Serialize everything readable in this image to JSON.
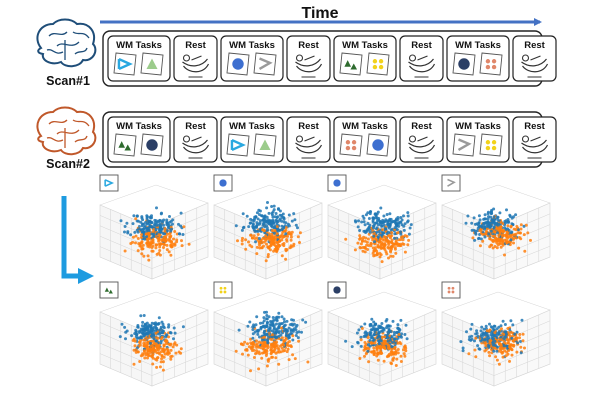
{
  "time_label": "Time",
  "scans": [
    {
      "label": "Scan#1",
      "brain_color": "#1f4e79",
      "blocks": [
        {
          "type": "task",
          "label": "WM Tasks",
          "cards": [
            "blue-lines",
            "green-triangle"
          ]
        },
        {
          "type": "rest",
          "label": "Rest"
        },
        {
          "type": "task",
          "label": "WM Tasks",
          "cards": [
            "blue-circle",
            "gray-lines"
          ]
        },
        {
          "type": "rest",
          "label": "Rest"
        },
        {
          "type": "task",
          "label": "WM Tasks",
          "cards": [
            "green-triangles",
            "yellow-dots"
          ]
        },
        {
          "type": "rest",
          "label": "Rest"
        },
        {
          "type": "task",
          "label": "WM Tasks",
          "cards": [
            "navy-circle",
            "salmon-dots"
          ]
        },
        {
          "type": "rest",
          "label": "Rest"
        }
      ]
    },
    {
      "label": "Scan#2",
      "brain_color": "#c0582a",
      "blocks": [
        {
          "type": "task",
          "label": "WM Tasks",
          "cards": [
            "green-triangles",
            "navy-circle"
          ]
        },
        {
          "type": "rest",
          "label": "Rest"
        },
        {
          "type": "task",
          "label": "WM Tasks",
          "cards": [
            "blue-lines",
            "green-triangle"
          ]
        },
        {
          "type": "rest",
          "label": "Rest"
        },
        {
          "type": "task",
          "label": "WM Tasks",
          "cards": [
            "salmon-dots",
            "blue-circle"
          ]
        },
        {
          "type": "rest",
          "label": "Rest"
        },
        {
          "type": "task",
          "label": "WM Tasks",
          "cards": [
            "gray-lines",
            "yellow-dots"
          ]
        },
        {
          "type": "rest",
          "label": "Rest"
        }
      ]
    }
  ],
  "scatter_panels": [
    {
      "stimulus": "blue-lines",
      "seed": 11,
      "blue_center": [
        0.0,
        0.3
      ],
      "orange_center": [
        0.1,
        -0.3
      ]
    },
    {
      "stimulus": "blue-circle",
      "seed": 23,
      "blue_center": [
        0.0,
        0.45
      ],
      "orange_center": [
        0.15,
        -0.35
      ]
    },
    {
      "stimulus": "blue-circle",
      "seed": 37,
      "blue_center": [
        0.05,
        0.4
      ],
      "orange_center": [
        0.0,
        -0.45
      ]
    },
    {
      "stimulus": "gray-lines",
      "seed": 41,
      "blue_center": [
        -0.1,
        0.35
      ],
      "orange_center": [
        0.2,
        -0.1
      ]
    },
    {
      "stimulus": "green-triangles",
      "seed": 53,
      "blue_center": [
        -0.1,
        0.35
      ],
      "orange_center": [
        0.1,
        -0.45
      ]
    },
    {
      "stimulus": "yellow-dots",
      "seed": 67,
      "blue_center": [
        0.2,
        0.45
      ],
      "orange_center": [
        0.0,
        -0.35
      ]
    },
    {
      "stimulus": "navy-circle",
      "seed": 79,
      "blue_center": [
        0.0,
        0.3
      ],
      "orange_center": [
        0.05,
        -0.35
      ]
    },
    {
      "stimulus": "salmon-dots",
      "seed": 83,
      "blue_center": [
        -0.1,
        0.1
      ],
      "orange_center": [
        0.15,
        -0.1
      ]
    }
  ],
  "colors": {
    "timeline_arrow": "#4472c4",
    "flow_arrow": "#1e9be0",
    "point_blue": "#1f77b4",
    "point_orange": "#ff7f0e",
    "stim_blue": "#29a8e0",
    "stim_green": "#2e6b2e",
    "stim_light_green": "#9ccc8c",
    "stim_gray": "#9a9a9a",
    "stim_circle_blue": "#3d6fd0",
    "stim_navy": "#2b3f66",
    "stim_yellow": "#f2d21a",
    "stim_salmon": "#e0876a"
  }
}
